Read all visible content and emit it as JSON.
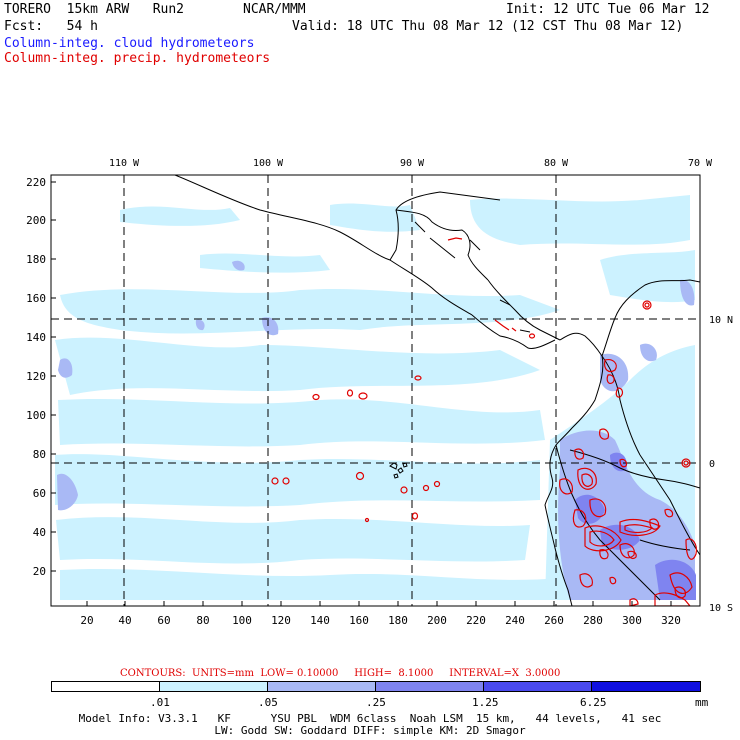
{
  "header": {
    "model": "TORERO  15km ARW   Run2",
    "org": "NCAR/MMM",
    "init": "Init: 12 UTC Tue 06 Mar 12",
    "fcst": "Fcst:   54 h",
    "valid": "Valid: 18 UTC Thu 08 Mar 12 (12 CST Thu 08 Mar 12)",
    "legend_cloud": "Column-integ. cloud hydrometeors",
    "legend_precip": "Column-integ. precip. hydrometeors"
  },
  "map": {
    "lon_labels": [
      "110 W",
      "100 W",
      "90 W",
      "80 W",
      "70 W"
    ],
    "lat_labels": [
      "10 N",
      "0",
      "10 S"
    ],
    "y_ticks": [
      "220",
      "200",
      "180",
      "160",
      "140",
      "120",
      "100",
      "80",
      "60",
      "40",
      "20"
    ],
    "x_ticks": [
      "20",
      "40",
      "60",
      "80",
      "100",
      "120",
      "140",
      "160",
      "180",
      "200",
      "220",
      "240",
      "260",
      "280",
      "300",
      "320"
    ],
    "colors": {
      "ocean": "#ffffff",
      "level1": "#ccf2ff",
      "level2": "#a9b9f5",
      "level3": "#7f84f0",
      "contour": "#e00000",
      "coast": "#000000"
    }
  },
  "contours_line": "CONTOURS:  UNITS=mm  LOW= 0.10000     HIGH=  8.1000     INTERVAL=X  3.0000",
  "colorbar": {
    "labels": [
      ".01",
      ".05",
      ".25",
      "1.25",
      "6.25"
    ],
    "unit": "mm",
    "colors": [
      "#ffffff",
      "#ccf2ff",
      "#a9b9f5",
      "#7f84f0",
      "#4a4aee",
      "#1010e0"
    ]
  },
  "footer": {
    "line1": "Model Info: V3.3.1   KF      YSU PBL  WDM 6class  Noah LSM  15 km,   44 levels,   41 sec",
    "line2": "LW: Godd SW: Goddard DIFF: simple KM: 2D Smagor"
  }
}
